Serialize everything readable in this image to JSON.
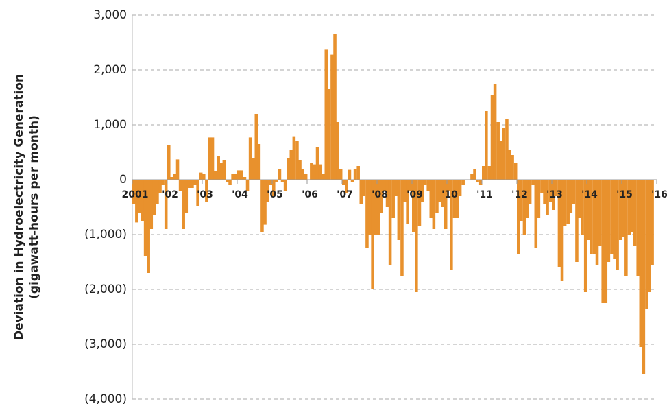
{
  "chart_data": {
    "type": "bar",
    "ylabel": [
      "Deviation in Hydroelectricity Generation",
      "(gigawatt-hours per month)"
    ],
    "color": "#e8912d",
    "grid": true,
    "xlim": [
      2001,
      2016
    ],
    "xticks": [
      {
        "value": 2001,
        "label": "2001"
      },
      {
        "value": 2002,
        "label": "'02"
      },
      {
        "value": 2003,
        "label": "'03"
      },
      {
        "value": 2004,
        "label": "'04"
      },
      {
        "value": 2005,
        "label": "'05"
      },
      {
        "value": 2006,
        "label": "'06"
      },
      {
        "value": 2007,
        "label": "'07"
      },
      {
        "value": 2008,
        "label": "'08"
      },
      {
        "value": 2009,
        "label": "'09"
      },
      {
        "value": 2010,
        "label": "'10"
      },
      {
        "value": 2011,
        "label": "'11"
      },
      {
        "value": 2012,
        "label": "'12"
      },
      {
        "value": 2013,
        "label": "'13"
      },
      {
        "value": 2014,
        "label": "'14"
      },
      {
        "value": 2015,
        "label": "'15"
      },
      {
        "value": 2016,
        "label": "'16"
      }
    ],
    "ylim": [
      -4000,
      3000
    ],
    "yticks": [
      {
        "value": 3000,
        "label": "3,000"
      },
      {
        "value": 2000,
        "label": "2,000"
      },
      {
        "value": 1000,
        "label": "1,000"
      },
      0,
      {
        "value": -1000,
        "label": "(1,000)"
      },
      {
        "value": -2000,
        "label": "(2,000)"
      },
      {
        "value": -3000,
        "label": "(3,000)"
      },
      {
        "value": -4000,
        "label": "(4,000)"
      }
    ],
    "x": [
      2001.0,
      2001.08,
      2001.17,
      2001.25,
      2001.33,
      2001.42,
      2001.5,
      2001.58,
      2001.67,
      2001.75,
      2001.83,
      2001.92,
      2002.0,
      2002.08,
      2002.17,
      2002.25,
      2002.33,
      2002.42,
      2002.5,
      2002.58,
      2002.67,
      2002.75,
      2002.83,
      2002.92,
      2003.0,
      2003.08,
      2003.17,
      2003.25,
      2003.33,
      2003.42,
      2003.5,
      2003.58,
      2003.67,
      2003.75,
      2003.83,
      2003.92,
      2004.0,
      2004.08,
      2004.17,
      2004.25,
      2004.33,
      2004.42,
      2004.5,
      2004.58,
      2004.67,
      2004.75,
      2004.83,
      2004.92,
      2005.0,
      2005.08,
      2005.17,
      2005.25,
      2005.33,
      2005.42,
      2005.5,
      2005.58,
      2005.67,
      2005.75,
      2005.83,
      2005.92,
      2006.0,
      2006.08,
      2006.17,
      2006.25,
      2006.33,
      2006.42,
      2006.5,
      2006.58,
      2006.67,
      2006.75,
      2006.83,
      2006.92,
      2007.0,
      2007.08,
      2007.17,
      2007.25,
      2007.33,
      2007.42,
      2007.5,
      2007.58,
      2007.67,
      2007.75,
      2007.83,
      2007.92,
      2008.0,
      2008.08,
      2008.17,
      2008.25,
      2008.33,
      2008.42,
      2008.5,
      2008.58,
      2008.67,
      2008.75,
      2008.83,
      2008.92,
      2009.0,
      2009.08,
      2009.17,
      2009.25,
      2009.33,
      2009.42,
      2009.5,
      2009.58,
      2009.67,
      2009.75,
      2009.83,
      2009.92,
      2010.0,
      2010.08,
      2010.17,
      2010.25,
      2010.33,
      2010.42,
      2010.5,
      2010.58,
      2010.67,
      2010.75,
      2010.83,
      2010.92,
      2011.0,
      2011.08,
      2011.17,
      2011.25,
      2011.33,
      2011.42,
      2011.5,
      2011.58,
      2011.67,
      2011.75,
      2011.83,
      2011.92,
      2012.0,
      2012.08,
      2012.17,
      2012.25,
      2012.33,
      2012.42,
      2012.5,
      2012.58,
      2012.67,
      2012.75,
      2012.83,
      2012.92,
      2013.0,
      2013.08,
      2013.17,
      2013.25,
      2013.33,
      2013.42,
      2013.5,
      2013.58,
      2013.67,
      2013.75,
      2013.83,
      2013.92,
      2014.0,
      2014.08,
      2014.17,
      2014.25,
      2014.33,
      2014.42,
      2014.5,
      2014.58,
      2014.67,
      2014.75,
      2014.83,
      2014.92,
      2015.0,
      2015.08,
      2015.17,
      2015.25,
      2015.33,
      2015.42,
      2015.5,
      2015.58,
      2015.67,
      2015.75,
      2015.83
    ],
    "values": [
      -450,
      -780,
      -600,
      -750,
      -1400,
      -1700,
      -900,
      -650,
      -450,
      -250,
      -100,
      -900,
      630,
      50,
      100,
      370,
      -200,
      -900,
      -600,
      -150,
      -150,
      -100,
      -480,
      130,
      100,
      -400,
      770,
      770,
      150,
      430,
      300,
      350,
      -50,
      -100,
      100,
      100,
      170,
      170,
      50,
      -200,
      770,
      400,
      1200,
      650,
      -950,
      -820,
      -400,
      -100,
      -300,
      -50,
      200,
      -50,
      -200,
      400,
      550,
      780,
      700,
      350,
      200,
      100,
      0,
      300,
      280,
      600,
      280,
      100,
      2370,
      1650,
      2280,
      2660,
      1050,
      200,
      -100,
      -250,
      180,
      -50,
      200,
      250,
      -450,
      -300,
      -1250,
      -1000,
      -2000,
      -1000,
      -1000,
      -600,
      -200,
      -500,
      -1550,
      -700,
      -300,
      -1100,
      -1750,
      -400,
      -800,
      -200,
      -950,
      -2050,
      -850,
      -400,
      -100,
      -200,
      -700,
      -900,
      -600,
      -400,
      -500,
      -900,
      -200,
      -1650,
      -700,
      -700,
      -300,
      -100,
      0,
      0,
      100,
      200,
      -50,
      -100,
      250,
      1250,
      250,
      1550,
      1750,
      1050,
      700,
      950,
      1100,
      550,
      450,
      300,
      -1350,
      -750,
      -1000,
      -700,
      -450,
      -100,
      -1250,
      -700,
      -250,
      -450,
      -650,
      -400,
      -550,
      -300,
      -1600,
      -1850,
      -850,
      -800,
      -600,
      -450,
      -1500,
      -700,
      -1000,
      -2050,
      -1100,
      -1350,
      -1350,
      -1550,
      -1200,
      -2250,
      -2250,
      -1500,
      -1350,
      -1450,
      -1650,
      -1100,
      -1050,
      -1750,
      -1000,
      -950,
      -1200,
      -1750,
      -3050,
      -3550,
      -2350,
      -2050,
      -1550
    ]
  }
}
